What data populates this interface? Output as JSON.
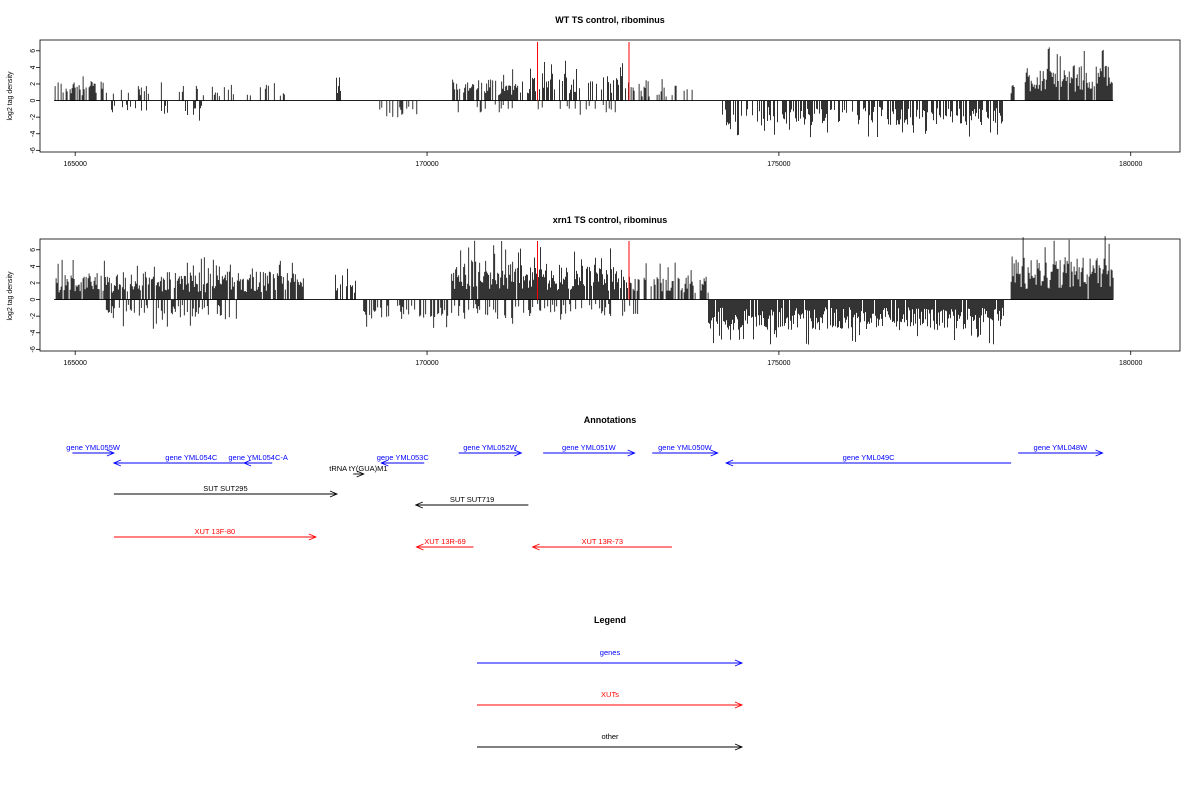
{
  "colors": {
    "gene": "#0000ff",
    "xut": "#ff0000",
    "other": "#000000",
    "marker": "#ff0000",
    "bars": "#000000"
  },
  "chart_data": [
    {
      "type": "bar",
      "title": "WT TS control, ribominus",
      "ylabel": "log2 tag density",
      "xlim": [
        164500,
        180700
      ],
      "ylim": [
        -6.2,
        7.3
      ],
      "xticks": [
        165000,
        170000,
        175000,
        180000
      ],
      "yticks": [
        6,
        4,
        2,
        0,
        -2,
        -4,
        -6
      ],
      "red_markers": [
        171570,
        172870
      ],
      "data_range": [
        164700,
        179750
      ],
      "segments": [
        {
          "start": 164700,
          "end": 165400,
          "dir": 1,
          "amp": 2.4,
          "density": 0.55
        },
        {
          "start": 165400,
          "end": 168000,
          "dir": 1,
          "amp": 1.9,
          "density": 0.25
        },
        {
          "start": 165500,
          "end": 166800,
          "dir": -1,
          "amp": 1.8,
          "density": 0.15
        },
        {
          "start": 168700,
          "end": 168780,
          "dir": 1,
          "amp": 3.0,
          "density": 0.9
        },
        {
          "start": 169300,
          "end": 169900,
          "dir": -1,
          "amp": 2.2,
          "density": 0.4
        },
        {
          "start": 170350,
          "end": 171300,
          "dir": 1,
          "amp": 2.6,
          "density": 0.7
        },
        {
          "start": 171300,
          "end": 172900,
          "dir": 1,
          "amp": 3.4,
          "density": 0.55
        },
        {
          "start": 170400,
          "end": 172900,
          "dir": -1,
          "amp": 1.5,
          "density": 0.12
        },
        {
          "start": 172900,
          "end": 173800,
          "dir": 1,
          "amp": 1.8,
          "density": 0.3
        },
        {
          "start": 174200,
          "end": 178200,
          "dir": -1,
          "amp": 3.0,
          "density": 0.6
        },
        {
          "start": 178300,
          "end": 178350,
          "dir": 1,
          "amp": 2.5,
          "density": 0.9
        },
        {
          "start": 178500,
          "end": 179750,
          "dir": 1,
          "amp": 4.3,
          "density": 0.95
        }
      ]
    },
    {
      "type": "bar",
      "title": "xrn1 TS control, ribominus",
      "ylabel": "log2 tag density",
      "xlim": [
        164500,
        180700
      ],
      "ylim": [
        -6.2,
        7.3
      ],
      "xticks": [
        165000,
        170000,
        175000,
        180000
      ],
      "yticks": [
        6,
        4,
        2,
        0,
        -2,
        -4,
        -6
      ],
      "red_markers": [
        171570,
        172870
      ],
      "data_range": [
        164700,
        179750
      ],
      "segments": [
        {
          "start": 164700,
          "end": 165400,
          "dir": 1,
          "amp": 3.2,
          "density": 0.8
        },
        {
          "start": 165400,
          "end": 168250,
          "dir": 1,
          "amp": 3.4,
          "density": 0.85
        },
        {
          "start": 165400,
          "end": 167300,
          "dir": -1,
          "amp": 2.5,
          "density": 0.45
        },
        {
          "start": 168700,
          "end": 169000,
          "dir": 1,
          "amp": 3.0,
          "density": 0.4
        },
        {
          "start": 169100,
          "end": 170300,
          "dir": -1,
          "amp": 2.4,
          "density": 0.55
        },
        {
          "start": 170350,
          "end": 171300,
          "dir": 1,
          "amp": 5.0,
          "density": 0.95
        },
        {
          "start": 171300,
          "end": 172900,
          "dir": 1,
          "amp": 4.3,
          "density": 0.85
        },
        {
          "start": 170350,
          "end": 173000,
          "dir": -1,
          "amp": 2.0,
          "density": 0.3
        },
        {
          "start": 172900,
          "end": 174000,
          "dir": 1,
          "amp": 3.0,
          "density": 0.7
        },
        {
          "start": 174000,
          "end": 178200,
          "dir": -1,
          "amp": 3.7,
          "density": 0.95
        },
        {
          "start": 178300,
          "end": 179750,
          "dir": 1,
          "amp": 5.2,
          "density": 0.98
        }
      ]
    }
  ],
  "annotations": {
    "title": "Annotations",
    "features": [
      {
        "label": "gene YML055W",
        "kind": "gene",
        "start": 164960,
        "end": 165550,
        "dir": 1,
        "row": 0
      },
      {
        "label": "gene YML054C",
        "kind": "gene",
        "start": 165550,
        "end": 167750,
        "dir": -1,
        "row": 1
      },
      {
        "label": "gene YML054C-A",
        "kind": "gene",
        "start": 167400,
        "end": 167800,
        "dir": -1,
        "row": 1
      },
      {
        "label": "tRNA tY(GUA)M1",
        "kind": "other",
        "start": 168950,
        "end": 169100,
        "dir": 1,
        "row": 2
      },
      {
        "label": "gene YML053C",
        "kind": "gene",
        "start": 169350,
        "end": 169960,
        "dir": -1,
        "row": 1
      },
      {
        "label": "gene YML052W",
        "kind": "gene",
        "start": 170450,
        "end": 171340,
        "dir": 1,
        "row": 0
      },
      {
        "label": "gene YML051W",
        "kind": "gene",
        "start": 171650,
        "end": 172950,
        "dir": 1,
        "row": 0
      },
      {
        "label": "gene YML050W",
        "kind": "gene",
        "start": 173200,
        "end": 174130,
        "dir": 1,
        "row": 0
      },
      {
        "label": "gene YML049C",
        "kind": "gene",
        "start": 174250,
        "end": 178300,
        "dir": -1,
        "row": 1
      },
      {
        "label": "gene YML048W",
        "kind": "gene",
        "start": 178400,
        "end": 179600,
        "dir": 1,
        "row": 0
      },
      {
        "label": "SUT SUT295",
        "kind": "other",
        "start": 165550,
        "end": 168720,
        "dir": 1,
        "row": 3
      },
      {
        "label": "SUT SUT719",
        "kind": "other",
        "start": 169840,
        "end": 171440,
        "dir": -1,
        "row": 4
      },
      {
        "label": "XUT 13F-80",
        "kind": "xut",
        "start": 165550,
        "end": 168420,
        "dir": 1,
        "row": 5
      },
      {
        "label": "XUT 13R-69",
        "kind": "xut",
        "start": 169850,
        "end": 170660,
        "dir": -1,
        "row": 6
      },
      {
        "label": "XUT 13R-73",
        "kind": "xut",
        "start": 171500,
        "end": 173480,
        "dir": -1,
        "row": 6
      }
    ]
  },
  "legend": {
    "title": "Legend",
    "items": [
      {
        "label": "genes",
        "kind": "gene"
      },
      {
        "label": "XUTs",
        "kind": "xut"
      },
      {
        "label": "other",
        "kind": "other"
      }
    ]
  }
}
